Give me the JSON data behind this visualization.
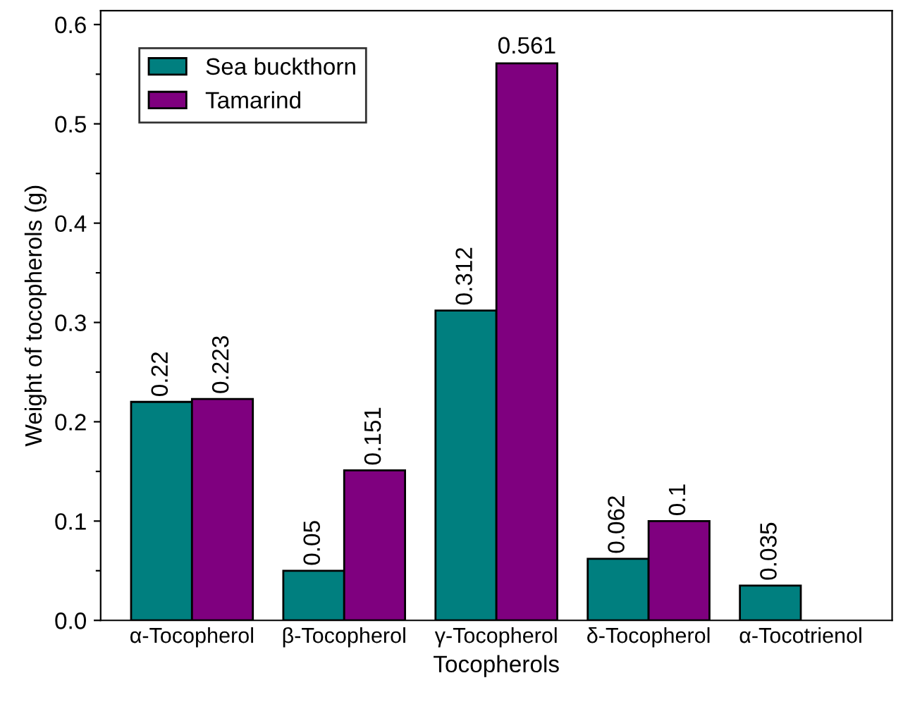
{
  "chart_data": {
    "type": "bar",
    "xlabel": "Tocopherols",
    "ylabel": "Weight of tocopherols (g)",
    "categories": [
      "α-Tocopherol",
      "β-Tocopherol",
      "γ-Tocopherol",
      "δ-Tocopherol",
      "α-Tocotrienol"
    ],
    "series": [
      {
        "name": "Sea buckthorn",
        "color": "#007f7f",
        "values": [
          0.22,
          0.05,
          0.312,
          0.062,
          0.035
        ]
      },
      {
        "name": "Tamarind",
        "color": "#7f007f",
        "values": [
          0.223,
          0.151,
          0.561,
          0.1,
          null
        ]
      }
    ],
    "ylim": [
      0,
      0.614
    ],
    "yticks": [
      {
        "value": 0,
        "label": "0.0"
      },
      {
        "value": 0.05,
        "label": null
      },
      {
        "value": 0.1,
        "label": "0.1"
      },
      {
        "value": 0.15,
        "label": null
      },
      {
        "value": 0.2,
        "label": "0.2"
      },
      {
        "value": 0.25,
        "label": null
      },
      {
        "value": 0.3,
        "label": "0.3"
      },
      {
        "value": 0.35,
        "label": null
      },
      {
        "value": 0.4,
        "label": "0.4"
      },
      {
        "value": 0.45,
        "label": null
      },
      {
        "value": 0.5,
        "label": "0.5"
      },
      {
        "value": 0.55,
        "label": null
      },
      {
        "value": 0.6,
        "label": "0.6"
      }
    ],
    "data_labels": true,
    "legend": "top left",
    "grid": false
  }
}
